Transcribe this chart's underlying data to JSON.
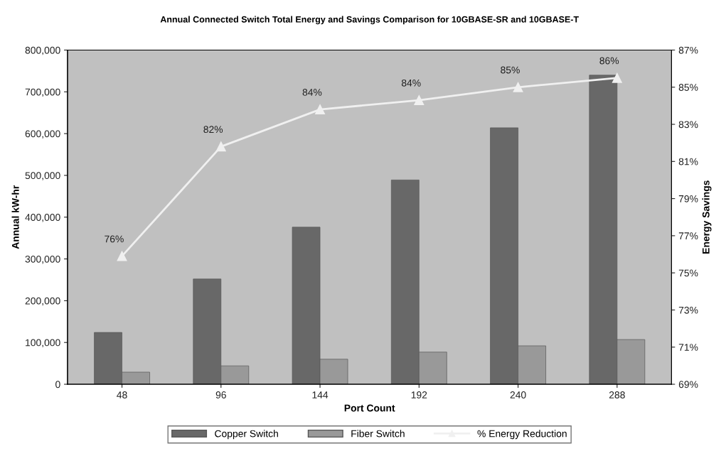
{
  "chart_data": {
    "type": "bar",
    "title": "Annual Connected Switch Total Energy and Savings Comparison for 10GBASE-SR and 10GBASE-T",
    "xlabel": "Port Count",
    "ylabel": "Annual kW-hr",
    "y2label": "Energy Savings",
    "categories": [
      "48",
      "96",
      "144",
      "192",
      "240",
      "288"
    ],
    "series": [
      {
        "name": "Copper Switch",
        "color": "#686868",
        "values": [
          124000,
          252000,
          376000,
          489000,
          614000,
          740000
        ]
      },
      {
        "name": "Fiber Switch",
        "color": "#999999",
        "values": [
          29000,
          44000,
          60000,
          77000,
          92000,
          107000
        ]
      },
      {
        "name": "% Energy Reduction",
        "type": "line",
        "axis": "y2",
        "color": "#f0f0f0",
        "marker": "triangle",
        "values": [
          75.9,
          81.8,
          83.8,
          84.3,
          85.0,
          85.5
        ],
        "value_labels": [
          "76%",
          "82%",
          "84%",
          "84%",
          "85%",
          "86%"
        ]
      }
    ],
    "ylim": [
      0,
      800000
    ],
    "yticks": [
      {
        "value": 0,
        "label": "0"
      },
      {
        "value": 100000,
        "label": "100,000"
      },
      {
        "value": 200000,
        "label": "200,000"
      },
      {
        "value": 300000,
        "label": "300,000"
      },
      {
        "value": 400000,
        "label": "400,000"
      },
      {
        "value": 500000,
        "label": "500,000"
      },
      {
        "value": 600000,
        "label": "600,000"
      },
      {
        "value": 700000,
        "label": "700,000"
      },
      {
        "value": 800000,
        "label": "800,000"
      }
    ],
    "y2lim": [
      69,
      87
    ],
    "y2ticks": [
      {
        "value": 69,
        "label": "69%"
      },
      {
        "value": 71,
        "label": "71%"
      },
      {
        "value": 73,
        "label": "73%"
      },
      {
        "value": 75,
        "label": "75%"
      },
      {
        "value": 77,
        "label": "77%"
      },
      {
        "value": 79,
        "label": "79%"
      },
      {
        "value": 81,
        "label": "81%"
      },
      {
        "value": 83,
        "label": "83%"
      },
      {
        "value": 85,
        "label": "85%"
      },
      {
        "value": 87,
        "label": "87%"
      }
    ],
    "grid": false,
    "legend": "bottom"
  }
}
